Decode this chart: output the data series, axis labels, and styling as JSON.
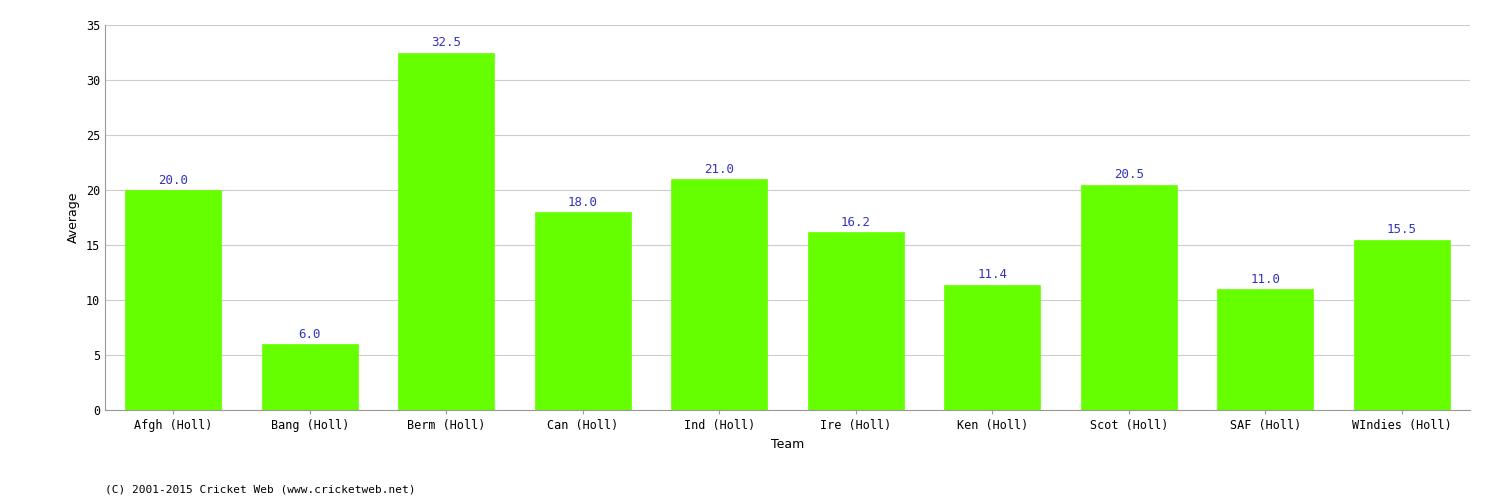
{
  "categories": [
    "Afgh (Holl)",
    "Bang (Holl)",
    "Berm (Holl)",
    "Can (Holl)",
    "Ind (Holl)",
    "Ire (Holl)",
    "Ken (Holl)",
    "Scot (Holl)",
    "SAF (Holl)",
    "WIndies (Holl)"
  ],
  "values": [
    20.0,
    6.0,
    32.5,
    18.0,
    21.0,
    16.2,
    11.4,
    20.5,
    11.0,
    15.5
  ],
  "bar_color": "#66ff00",
  "bar_edge_color": "#66ff00",
  "label_color": "#3333bb",
  "ylabel": "Average",
  "xlabel": "Team",
  "ylim": [
    0,
    35
  ],
  "yticks": [
    0,
    5,
    10,
    15,
    20,
    25,
    30,
    35
  ],
  "grid_color": "#cccccc",
  "background_color": "#ffffff",
  "label_fontsize": 9,
  "axis_label_fontsize": 9,
  "tick_label_fontsize": 8.5,
  "footer_text": "(C) 2001-2015 Cricket Web (www.cricketweb.net)",
  "bar_width": 0.7
}
